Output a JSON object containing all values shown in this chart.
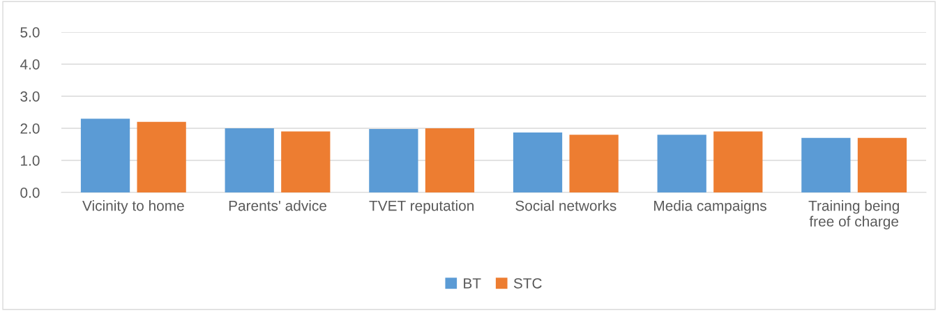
{
  "chart_data": {
    "type": "bar",
    "categories": [
      "Vicinity to home",
      "Parents' advice",
      "TVET reputation",
      "Social networks",
      "Media campaigns",
      "Training being\nfree of charge"
    ],
    "series": [
      {
        "name": "BT",
        "color": "#5b9bd5",
        "values": [
          2.3,
          2.0,
          1.98,
          1.87,
          1.8,
          1.7
        ]
      },
      {
        "name": "STC",
        "color": "#ed7d31",
        "values": [
          2.2,
          1.9,
          2.0,
          1.8,
          1.9,
          1.7
        ]
      }
    ],
    "ylim": [
      0,
      5
    ],
    "yticks": [
      {
        "value": 0,
        "label": "0.0"
      },
      {
        "value": 1,
        "label": "1.0"
      },
      {
        "value": 2,
        "label": "2.0"
      },
      {
        "value": 3,
        "label": "3.0"
      },
      {
        "value": 4,
        "label": "4.0"
      },
      {
        "value": 5,
        "label": "5.0"
      }
    ],
    "grid": "y",
    "legend": "bottom"
  }
}
